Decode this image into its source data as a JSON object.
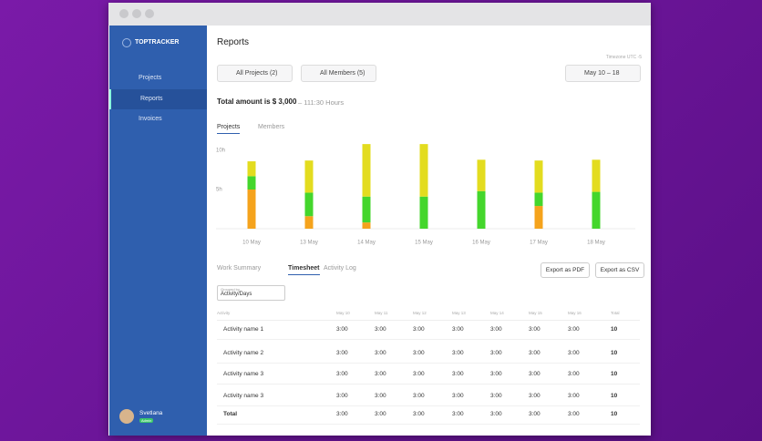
{
  "sidebar": {
    "brand": "TOPTRACKER",
    "nav": [
      "Projects",
      "Reports",
      "Invoices"
    ],
    "user": {
      "name": "Svetlana",
      "badge": "Admin"
    }
  },
  "header": {
    "title": "Reports",
    "timezone": "Timezone UTC -5"
  },
  "filters": [
    "All Projects (2)",
    "All Members (5)",
    "May 10 – 18"
  ],
  "summary": {
    "total": "Total amount is $ 3,000",
    "hours": "– 111:30 Hours"
  },
  "chart_tabs": [
    "Projects",
    "Members"
  ],
  "chart_data": {
    "type": "bar",
    "stacked": true,
    "categories": [
      "10 May",
      "13 May",
      "14 May",
      "15 May",
      "16 May",
      "17 May",
      "18 May"
    ],
    "series": [
      {
        "color": "#f5a31c",
        "values": [
          5,
          1.6,
          0.8,
          0,
          0,
          2.9,
          0
        ]
      },
      {
        "color": "#44d62c",
        "values": [
          1.7,
          3,
          3.3,
          4.1,
          4.8,
          1.7,
          4.7
        ]
      },
      {
        "color": "#e3dc1f",
        "values": [
          1.9,
          4.1,
          6.7,
          6.7,
          4,
          4.1,
          4.1
        ]
      }
    ],
    "ylim": [
      0,
      11
    ],
    "yticks": [
      {
        "value": 5,
        "label": "5h"
      },
      {
        "value": 10,
        "label": "10h"
      }
    ],
    "grid": false
  },
  "report_tabs": [
    "Work Summary",
    "Timesheet",
    "Activity Log"
  ],
  "export_buttons": [
    "Export as PDF",
    "Export as CSV"
  ],
  "group_by": {
    "label": "Grouped by",
    "value": "Activity/Days"
  },
  "table": {
    "columns": [
      "Activity",
      "May 10",
      "May 11",
      "May 12",
      "May 13",
      "May 14",
      "May 15",
      "May 16",
      "Total"
    ],
    "rows": [
      [
        "Activity name 1",
        "3:00",
        "3:00",
        "3:00",
        "3:00",
        "3:00",
        "3:00",
        "3:00",
        "10"
      ],
      [
        "Activity name 2",
        "3:00",
        "3:00",
        "3:00",
        "3:00",
        "3:00",
        "3:00",
        "3:00",
        "10"
      ],
      [
        "Activity name 3",
        "3:00",
        "3:00",
        "3:00",
        "3:00",
        "3:00",
        "3:00",
        "3:00",
        "10"
      ],
      [
        "Activity name 3",
        "3:00",
        "3:00",
        "3:00",
        "3:00",
        "3:00",
        "3:00",
        "3:00",
        "10"
      ],
      [
        "Total",
        "3:00",
        "3:00",
        "3:00",
        "3:00",
        "3:00",
        "3:00",
        "3:00",
        "10"
      ]
    ]
  }
}
